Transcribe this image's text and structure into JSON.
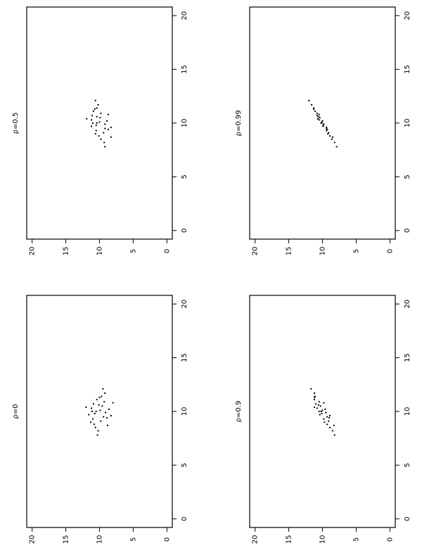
{
  "chart_data": [
    {
      "type": "scatter",
      "title": "ρ=0.5",
      "color": "#000000",
      "xlim": [
        -0.8,
        20.8
      ],
      "ylim": [
        -0.8,
        20.8
      ],
      "xticks": [
        0,
        5,
        10,
        15,
        20
      ],
      "yticks": [
        0,
        5,
        10,
        15,
        20
      ],
      "x": [
        10.5,
        8.8,
        10.3,
        11.4,
        9.4,
        10.0,
        9.7,
        10.9,
        8.2,
        10.7,
        10.2,
        9.1,
        11.1,
        9.9,
        10.4,
        8.5,
        12.1,
        9.6,
        10.6,
        9.3,
        11.7,
        7.8,
        10.1,
        9.0,
        10.8,
        9.8,
        11.3,
        9.5,
        10.0,
        8.7
      ],
      "y": [
        9.9,
        10.1,
        11.2,
        10.4,
        8.7,
        10.4,
        11.2,
        9.8,
        9.3,
        11.1,
        8.9,
        9.4,
        10.9,
        9.2,
        11.9,
        9.8,
        10.6,
        8.3,
        10.4,
        10.5,
        10.2,
        9.2,
        10.0,
        10.6,
        8.7,
        10.5,
        10.7,
        9.2,
        11.0,
        8.3
      ]
    },
    {
      "type": "scatter",
      "title": "ρ=0.99",
      "color": "#000000",
      "xlim": [
        -0.8,
        20.8
      ],
      "ylim": [
        -0.8,
        20.8
      ],
      "xticks": [
        0,
        5,
        10,
        15,
        20
      ],
      "yticks": [
        0,
        5,
        10,
        15,
        20
      ],
      "x": [
        10.5,
        8.8,
        10.3,
        11.4,
        9.4,
        10.0,
        9.7,
        10.9,
        8.2,
        10.7,
        10.2,
        9.1,
        11.1,
        9.9,
        10.4,
        8.5,
        12.1,
        9.6,
        10.6,
        9.3,
        11.7,
        7.8,
        10.1,
        9.0,
        10.8,
        9.8,
        11.3,
        9.5,
        10.0,
        8.7
      ],
      "y": [
        10.4,
        8.9,
        10.5,
        11.3,
        9.3,
        10.1,
        9.9,
        10.8,
        8.2,
        10.8,
        10.0,
        9.1,
        11.1,
        9.8,
        10.7,
        8.6,
        12.0,
        9.4,
        10.6,
        9.4,
        11.6,
        7.9,
        10.1,
        9.2,
        10.5,
        9.9,
        11.3,
        9.4,
        10.2,
        8.5
      ]
    },
    {
      "type": "scatter",
      "title": "ρ=0",
      "color": "#000000",
      "xlim": [
        -0.8,
        20.8
      ],
      "ylim": [
        -0.8,
        20.8
      ],
      "xticks": [
        0,
        5,
        10,
        15,
        20
      ],
      "yticks": [
        0,
        5,
        10,
        15,
        20
      ],
      "x": [
        10.5,
        8.8,
        10.3,
        11.4,
        9.4,
        10.0,
        9.7,
        10.9,
        8.2,
        10.7,
        10.2,
        9.1,
        11.1,
        9.9,
        10.4,
        8.5,
        12.1,
        9.6,
        10.6,
        9.3,
        11.7,
        7.8,
        10.1,
        9.0,
        10.8,
        9.8,
        11.3,
        9.5,
        10.0,
        8.7
      ],
      "y": [
        9.6,
        10.8,
        11.2,
        9.7,
        8.9,
        10.5,
        11.6,
        9.3,
        10.2,
        10.9,
        8.6,
        9.8,
        10.4,
        9.1,
        12.0,
        10.6,
        9.5,
        8.3,
        10.1,
        11.0,
        9.2,
        10.3,
        9.9,
        11.3,
        8.0,
        10.7,
        10.0,
        9.4,
        11.1,
        8.8
      ]
    },
    {
      "type": "scatter",
      "title": "ρ=0.9",
      "color": "#000000",
      "xlim": [
        -0.8,
        20.8
      ],
      "ylim": [
        -0.8,
        20.8
      ],
      "xticks": [
        0,
        5,
        10,
        15,
        20
      ],
      "yticks": [
        0,
        5,
        10,
        15,
        20
      ],
      "x": [
        10.5,
        8.8,
        10.3,
        11.4,
        9.4,
        10.0,
        9.7,
        10.9,
        8.2,
        10.7,
        10.2,
        9.1,
        11.1,
        9.9,
        10.4,
        8.5,
        12.1,
        9.6,
        10.6,
        9.3,
        11.7,
        7.8,
        10.1,
        9.0,
        10.8,
        9.8,
        11.3,
        9.5,
        10.0,
        8.7
      ],
      "y": [
        10.3,
        9.3,
        10.8,
        11.1,
        9.0,
        10.2,
        10.4,
        10.5,
        8.5,
        11.0,
        9.6,
        9.1,
        11.2,
        9.5,
        11.2,
        8.9,
        11.7,
        8.9,
        10.6,
        9.8,
        11.2,
        8.2,
        10.0,
        9.7,
        9.8,
        10.1,
        11.2,
        9.3,
        10.5,
        8.3
      ]
    }
  ]
}
